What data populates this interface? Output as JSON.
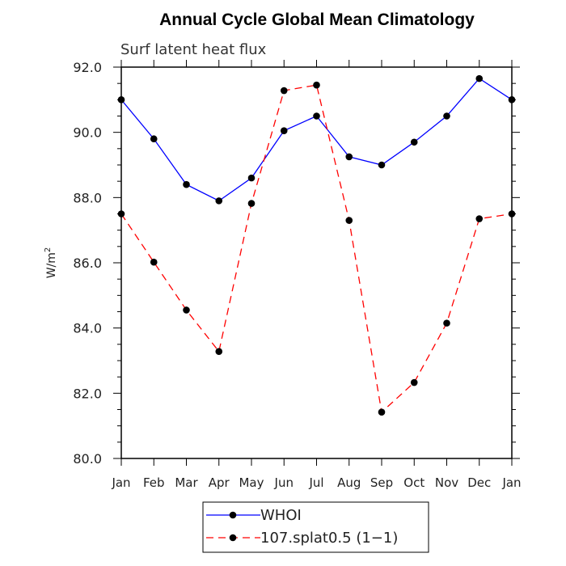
{
  "chart_data": {
    "type": "line",
    "title": "Annual Cycle Global Mean Climatology",
    "subtitle": "Surf latent heat flux",
    "ylabel": "W/m",
    "ylabel_sup": "2",
    "xlabel": "",
    "categories": [
      "Jan",
      "Feb",
      "Mar",
      "Apr",
      "May",
      "Jun",
      "Jul",
      "Aug",
      "Sep",
      "Oct",
      "Nov",
      "Dec",
      "Jan"
    ],
    "ylim": [
      80.0,
      92.0
    ],
    "yticks": [
      "80.0",
      "82.0",
      "84.0",
      "86.0",
      "88.0",
      "90.0",
      "92.0"
    ],
    "grid": false,
    "legend_position": "bottom-center",
    "series": [
      {
        "name": "WHOI",
        "color": "#0000ff",
        "dash": "solid",
        "values": [
          91.0,
          89.8,
          88.4,
          87.9,
          88.6,
          90.05,
          90.5,
          89.25,
          89.0,
          89.7,
          90.5,
          91.65,
          91.0
        ]
      },
      {
        "name": "107.splat0.5 (1−1)",
        "color": "#ff0000",
        "dash": "dashed",
        "values": [
          87.5,
          86.02,
          84.55,
          83.28,
          87.82,
          91.28,
          91.45,
          87.3,
          81.42,
          82.33,
          84.15,
          87.35,
          87.5
        ]
      }
    ]
  }
}
